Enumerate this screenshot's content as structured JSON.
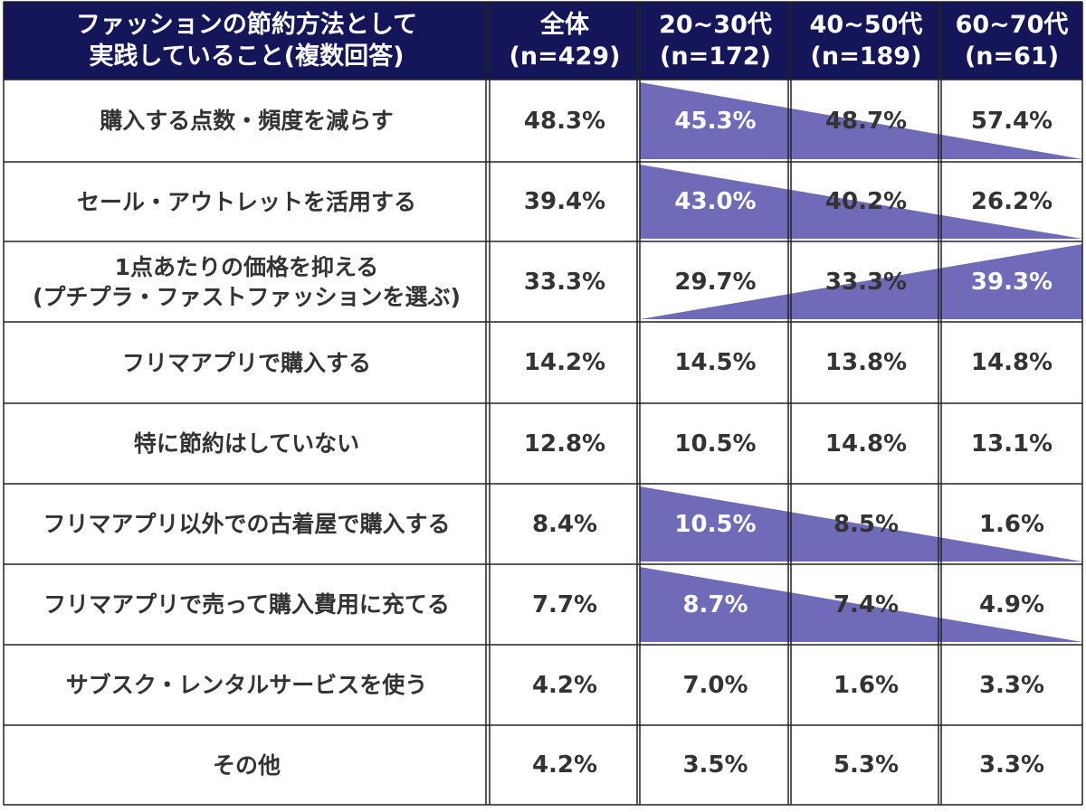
{
  "colors": {
    "header_bg": "#141659",
    "header_text": "#ffffff",
    "text": "#333333",
    "trend_fill": "#6f6bb8",
    "border": "#222222"
  },
  "chart_data": {
    "type": "table",
    "header": {
      "label_line1": "ファッションの節約方法として",
      "label_line2": "実践していること(複数回答)",
      "columns": [
        {
          "name": "全体",
          "n": "(n=429)"
        },
        {
          "name": "20~30代",
          "n": "(n=172)"
        },
        {
          "name": "40~50代",
          "n": "(n=189)"
        },
        {
          "name": "60~70代",
          "n": "(n=61)"
        }
      ]
    },
    "rows": [
      {
        "label": [
          "購入する点数・頻度を減らす"
        ],
        "values": [
          "48.3%",
          "45.3%",
          "48.7%",
          "57.4%"
        ],
        "trend": "down"
      },
      {
        "label": [
          "セール・アウトレットを活用する"
        ],
        "values": [
          "39.4%",
          "43.0%",
          "40.2%",
          "26.2%"
        ],
        "trend": "down"
      },
      {
        "label": [
          "1点あたりの価格を抑える",
          "(プチプラ・ファストファッションを選ぶ)"
        ],
        "values": [
          "33.3%",
          "29.7%",
          "33.3%",
          "39.3%"
        ],
        "trend": "up"
      },
      {
        "label": [
          "フリマアプリで購入する"
        ],
        "values": [
          "14.2%",
          "14.5%",
          "13.8%",
          "14.8%"
        ],
        "trend": "none"
      },
      {
        "label": [
          "特に節約はしていない"
        ],
        "values": [
          "12.8%",
          "10.5%",
          "14.8%",
          "13.1%"
        ],
        "trend": "none"
      },
      {
        "label": [
          "フリマアプリ以外での古着屋で購入する"
        ],
        "values": [
          "8.4%",
          "10.5%",
          "8.5%",
          "1.6%"
        ],
        "trend": "down"
      },
      {
        "label": [
          "フリマアプリで売って購入費用に充てる"
        ],
        "values": [
          "7.7%",
          "8.7%",
          "7.4%",
          "4.9%"
        ],
        "trend": "down"
      },
      {
        "label": [
          "サブスク・レンタルサービスを使う"
        ],
        "values": [
          "4.2%",
          "7.0%",
          "1.6%",
          "3.3%"
        ],
        "trend": "none"
      },
      {
        "label": [
          "その他"
        ],
        "values": [
          "4.2%",
          "3.5%",
          "5.3%",
          "3.3%"
        ],
        "trend": "none"
      }
    ]
  }
}
